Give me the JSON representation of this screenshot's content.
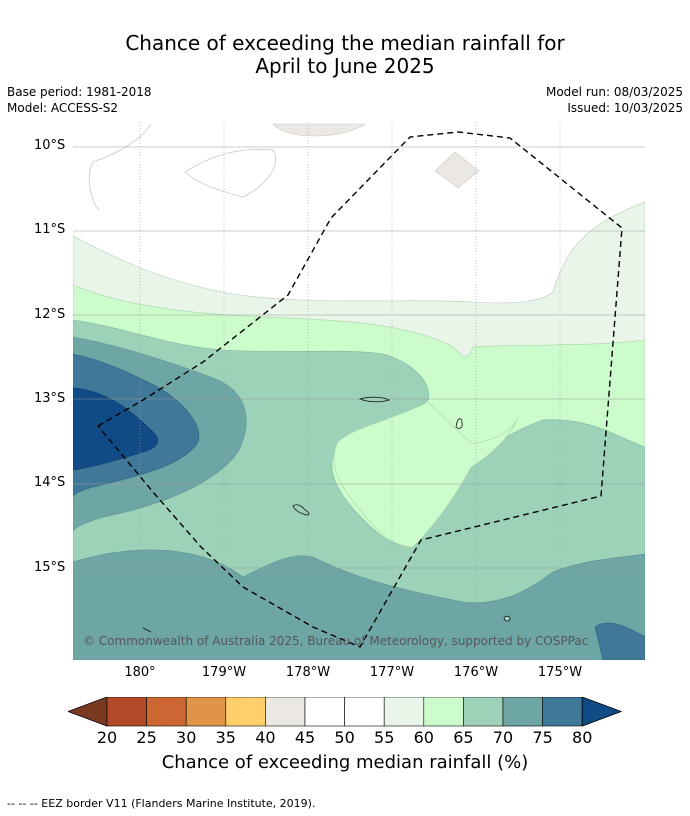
{
  "title_line1": "Chance of exceeding the median rainfall for",
  "title_line2": "April to June 2025",
  "base_period": "Base period: 1981-2018",
  "model": "Model: ACCESS-S2",
  "model_run": "Model run: 08/03/2025",
  "issued": "Issued: 10/03/2025",
  "lat_labels": [
    "10°S",
    "11°S",
    "12°S",
    "13°S",
    "14°S",
    "15°S"
  ],
  "lon_labels": [
    "180°",
    "179°W",
    "178°W",
    "177°W",
    "176°W",
    "175°W"
  ],
  "copyright": "© Commonwealth of Australia 2025, Bureau of Meteorology, supported by COSPPac",
  "colorbar": {
    "title": "Chance of exceeding median rainfall (%)",
    "ticks": [
      "20",
      "25",
      "30",
      "35",
      "40",
      "45",
      "50",
      "55",
      "60",
      "65",
      "70",
      "75",
      "80"
    ],
    "colors": [
      "#7a3a22",
      "#b24a2a",
      "#cc6633",
      "#e09448",
      "#fecf6b",
      "#ebe8e3",
      "#ffffff",
      "#ffffff",
      "#e8f5e8",
      "#ccfccc",
      "#9ed2b8",
      "#6ea6a6",
      "#3f7898",
      "#114b86"
    ]
  },
  "legend_note": "--  --  -- EEZ border V11 (Flanders Marine Institute, 2019)."
}
